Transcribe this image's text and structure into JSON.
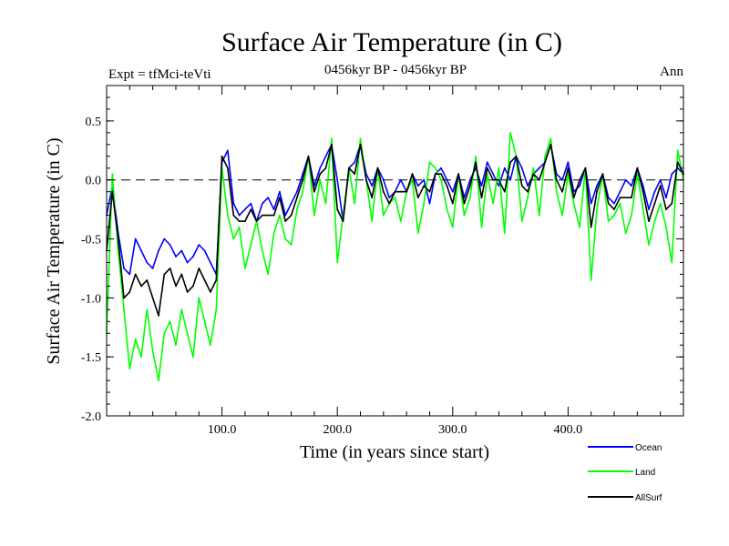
{
  "chart_data": {
    "type": "line",
    "title": "Surface Air Temperature (in C)",
    "subtitle_left": "Expt = tfMci-teVti",
    "subtitle_center": "0456kyr BP - 0456kyr BP",
    "subtitle_right": "Ann",
    "xlabel": "Time (in years since start)",
    "ylabel": "Surface Air Temperature (in C)",
    "xlim": [
      0,
      500
    ],
    "ylim": [
      -2.0,
      0.8
    ],
    "x_ticks": [
      100,
      200,
      300,
      400
    ],
    "x_tick_labels": [
      "100.0",
      "200.0",
      "300.0",
      "400.0"
    ],
    "y_ticks": [
      0.5,
      0.0,
      -0.5,
      -1.0,
      -1.5,
      -2.0
    ],
    "y_tick_labels": [
      "0.5",
      "0.0",
      "-0.5",
      "-1.0",
      "-1.5",
      "-2.0"
    ],
    "reference_line": {
      "y": 0.0,
      "style": "dashed"
    },
    "legend_position": "below-right",
    "series": [
      {
        "name": "Ocean",
        "color": "#0000ff",
        "x": [
          0,
          5,
          10,
          15,
          20,
          25,
          30,
          35,
          40,
          45,
          50,
          55,
          60,
          65,
          70,
          75,
          80,
          85,
          90,
          95,
          100,
          105,
          110,
          115,
          120,
          125,
          130,
          135,
          140,
          145,
          150,
          155,
          160,
          165,
          170,
          175,
          180,
          185,
          190,
          195,
          200,
          205,
          210,
          215,
          220,
          225,
          230,
          235,
          240,
          245,
          250,
          255,
          260,
          265,
          270,
          275,
          280,
          285,
          290,
          295,
          300,
          305,
          310,
          315,
          320,
          325,
          330,
          335,
          340,
          345,
          350,
          355,
          360,
          365,
          370,
          375,
          380,
          385,
          390,
          395,
          400,
          405,
          410,
          415,
          420,
          425,
          430,
          435,
          440,
          445,
          450,
          455,
          460,
          465,
          470,
          475,
          480,
          485,
          490,
          495,
          500
        ],
        "values": [
          -0.3,
          -0.05,
          -0.45,
          -0.75,
          -0.8,
          -0.5,
          -0.6,
          -0.7,
          -0.75,
          -0.6,
          -0.5,
          -0.55,
          -0.65,
          -0.6,
          -0.7,
          -0.65,
          -0.55,
          -0.6,
          -0.7,
          -0.8,
          0.15,
          0.25,
          -0.2,
          -0.3,
          -0.25,
          -0.2,
          -0.35,
          -0.2,
          -0.15,
          -0.25,
          -0.1,
          -0.3,
          -0.2,
          -0.1,
          0.05,
          0.2,
          -0.05,
          0.1,
          0.2,
          0.3,
          0.0,
          -0.35,
          0.1,
          0.15,
          0.3,
          0.05,
          -0.05,
          0.1,
          0.0,
          -0.15,
          -0.1,
          0.0,
          -0.1,
          0.05,
          -0.05,
          0.0,
          -0.2,
          0.05,
          0.1,
          0.0,
          -0.1,
          0.05,
          -0.15,
          0.0,
          0.1,
          -0.05,
          0.15,
          0.05,
          -0.05,
          0.1,
          0.0,
          0.2,
          0.1,
          -0.05,
          0.05,
          0.1,
          0.15,
          0.3,
          0.05,
          0.0,
          0.15,
          -0.1,
          -0.05,
          0.1,
          -0.2,
          -0.05,
          0.05,
          -0.15,
          -0.2,
          -0.1,
          0.0,
          -0.05,
          0.1,
          -0.05,
          -0.25,
          -0.1,
          0.0,
          -0.15,
          0.05,
          0.1,
          0.05
        ]
      },
      {
        "name": "Land",
        "color": "#00ff00",
        "x": [
          0,
          5,
          10,
          15,
          20,
          25,
          30,
          35,
          40,
          45,
          50,
          55,
          60,
          65,
          70,
          75,
          80,
          85,
          90,
          95,
          100,
          105,
          110,
          115,
          120,
          125,
          130,
          135,
          140,
          145,
          150,
          155,
          160,
          165,
          170,
          175,
          180,
          185,
          190,
          195,
          200,
          205,
          210,
          215,
          220,
          225,
          230,
          235,
          240,
          245,
          250,
          255,
          260,
          265,
          270,
          275,
          280,
          285,
          290,
          295,
          300,
          305,
          310,
          315,
          320,
          325,
          330,
          335,
          340,
          345,
          350,
          355,
          360,
          365,
          370,
          375,
          380,
          385,
          390,
          395,
          400,
          405,
          410,
          415,
          420,
          425,
          430,
          435,
          440,
          445,
          450,
          455,
          460,
          465,
          470,
          475,
          480,
          485,
          490,
          495,
          500
        ],
        "values": [
          -1.3,
          0.05,
          -0.6,
          -1.1,
          -1.6,
          -1.35,
          -1.5,
          -1.1,
          -1.45,
          -1.7,
          -1.3,
          -1.2,
          -1.4,
          -1.1,
          -1.3,
          -1.5,
          -1.0,
          -1.2,
          -1.4,
          -1.1,
          0.1,
          -0.3,
          -0.5,
          -0.4,
          -0.75,
          -0.55,
          -0.35,
          -0.6,
          -0.8,
          -0.45,
          -0.3,
          -0.5,
          -0.55,
          -0.25,
          -0.1,
          0.2,
          -0.3,
          0.0,
          -0.2,
          0.35,
          -0.7,
          -0.3,
          0.1,
          -0.2,
          0.35,
          0.0,
          -0.35,
          0.1,
          -0.3,
          -0.2,
          -0.15,
          -0.35,
          -0.1,
          0.0,
          -0.45,
          -0.2,
          0.15,
          0.1,
          0.0,
          -0.25,
          -0.4,
          0.05,
          -0.3,
          -0.15,
          0.2,
          -0.4,
          0.05,
          -0.2,
          0.1,
          -0.45,
          0.4,
          0.2,
          -0.35,
          -0.15,
          0.1,
          -0.3,
          0.2,
          0.35,
          -0.1,
          -0.3,
          0.05,
          -0.2,
          -0.4,
          0.1,
          -0.85,
          -0.25,
          0.05,
          -0.35,
          -0.3,
          -0.2,
          -0.45,
          -0.3,
          0.05,
          -0.25,
          -0.55,
          -0.35,
          -0.2,
          -0.4,
          -0.7,
          0.25,
          0.0
        ]
      },
      {
        "name": "AllSurf",
        "color": "#000000",
        "x": [
          0,
          5,
          10,
          15,
          20,
          25,
          30,
          35,
          40,
          45,
          50,
          55,
          60,
          65,
          70,
          75,
          80,
          85,
          90,
          95,
          100,
          105,
          110,
          115,
          120,
          125,
          130,
          135,
          140,
          145,
          150,
          155,
          160,
          165,
          170,
          175,
          180,
          185,
          190,
          195,
          200,
          205,
          210,
          215,
          220,
          225,
          230,
          235,
          240,
          245,
          250,
          255,
          260,
          265,
          270,
          275,
          280,
          285,
          290,
          295,
          300,
          305,
          310,
          315,
          320,
          325,
          330,
          335,
          340,
          345,
          350,
          355,
          360,
          365,
          370,
          375,
          380,
          385,
          390,
          395,
          400,
          405,
          410,
          415,
          420,
          425,
          430,
          435,
          440,
          445,
          450,
          455,
          460,
          465,
          470,
          475,
          480,
          485,
          490,
          495,
          500
        ],
        "values": [
          -0.6,
          -0.1,
          -0.5,
          -1.0,
          -0.95,
          -0.8,
          -0.9,
          -0.85,
          -1.0,
          -1.15,
          -0.8,
          -0.75,
          -0.9,
          -0.8,
          -0.95,
          -0.9,
          -0.75,
          -0.85,
          -0.95,
          -0.85,
          0.2,
          0.1,
          -0.3,
          -0.35,
          -0.35,
          -0.25,
          -0.35,
          -0.3,
          -0.3,
          -0.3,
          -0.15,
          -0.35,
          -0.3,
          -0.15,
          0.0,
          0.2,
          -0.1,
          0.05,
          0.1,
          0.3,
          -0.25,
          -0.35,
          0.1,
          0.05,
          0.3,
          0.0,
          -0.15,
          0.1,
          -0.1,
          -0.2,
          -0.1,
          -0.1,
          -0.1,
          0.05,
          -0.15,
          -0.05,
          -0.1,
          0.05,
          0.05,
          -0.05,
          -0.2,
          0.05,
          -0.2,
          -0.05,
          0.15,
          -0.15,
          0.1,
          0.0,
          0.0,
          -0.1,
          0.15,
          0.2,
          -0.05,
          -0.1,
          0.05,
          0.0,
          0.15,
          0.3,
          0.0,
          -0.1,
          0.1,
          -0.15,
          0.0,
          0.1,
          -0.4,
          -0.1,
          0.05,
          -0.2,
          -0.25,
          -0.15,
          -0.15,
          -0.15,
          0.1,
          -0.1,
          -0.35,
          -0.2,
          -0.05,
          -0.25,
          -0.2,
          0.15,
          0.05
        ]
      }
    ]
  }
}
